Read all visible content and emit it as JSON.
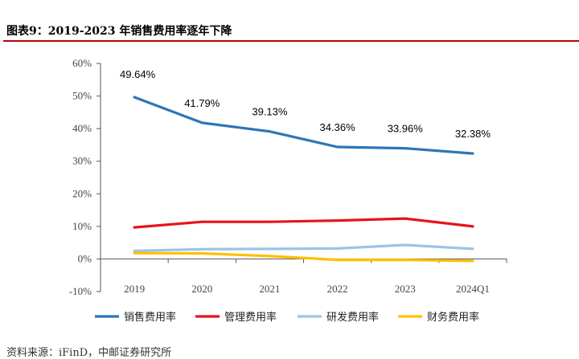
{
  "header": {
    "title": "图表9：2019-2023 年销售费用率逐年下降"
  },
  "source": "资料来源：iFinD，中邮证券研究所",
  "colors": {
    "title_rule": "#c00000",
    "axis": "#555555"
  },
  "chart_data": {
    "type": "line",
    "categories": [
      "2019",
      "2020",
      "2021",
      "2022",
      "2023",
      "2024Q1"
    ],
    "ylim": [
      -10,
      60
    ],
    "yticks": [
      -10,
      0,
      10,
      20,
      30,
      40,
      50,
      60
    ],
    "ytick_labels": [
      "-10%",
      "0%",
      "10%",
      "20%",
      "30%",
      "40%",
      "50%",
      "60%"
    ],
    "grid": false,
    "legend_position": "bottom",
    "series": [
      {
        "name": "销售费用率",
        "color": "#2e75b6",
        "values": [
          49.64,
          41.79,
          39.13,
          34.36,
          33.96,
          32.38
        ],
        "labels": [
          "49.64%",
          "41.79%",
          "39.13%",
          "34.36%",
          "33.96%",
          "32.38%"
        ]
      },
      {
        "name": "管理费用率",
        "color": "#e8131b",
        "values": [
          9.7,
          11.4,
          11.4,
          11.8,
          12.4,
          10.0
        ]
      },
      {
        "name": "研发费用率",
        "color": "#9dc3e6",
        "values": [
          2.5,
          3.0,
          3.1,
          3.2,
          4.3,
          3.1
        ]
      },
      {
        "name": "财务费用率",
        "color": "#ffc000",
        "values": [
          1.8,
          1.7,
          0.9,
          -0.3,
          -0.3,
          -0.6
        ]
      }
    ]
  }
}
